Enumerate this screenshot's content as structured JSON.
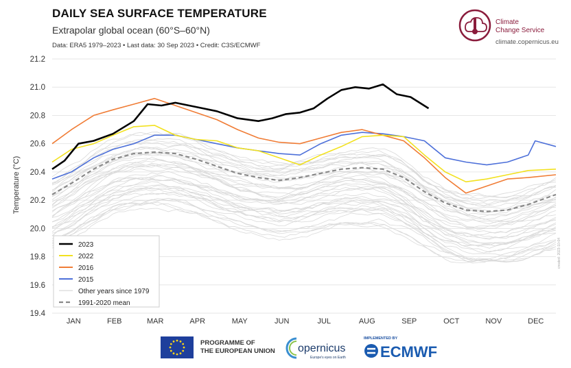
{
  "header": {
    "title": "DAILY SEA SURFACE TEMPERATURE",
    "subtitle": "Extrapolar global ocean (60°S–60°N)",
    "note": "Data: ERA5 1979–2023 • Last data: 30 Sep 2023 • Credit: C3S/ECMWF"
  },
  "branding": {
    "c3s_line1": "Climate",
    "c3s_line2": "Change Service",
    "c3s_url": "climate.copernicus.eu",
    "eu_line1": "PROGRAMME OF",
    "eu_line2": "THE EUROPEAN UNION",
    "copernicus_name": "opernicus",
    "copernicus_tag": "Europe's eyes on Earth",
    "ecmwf_small": "IMPLEMENTED BY",
    "ecmwf_name": "ECMWF",
    "watermark": "created: 2023-10-04"
  },
  "colors": {
    "y2023": "#000000",
    "y2022": "#f2e11f",
    "y2016": "#f07c35",
    "y2015": "#4c6fd9",
    "other": "#d9d9d9",
    "mean": "#888888",
    "brand": "#8a1c3c"
  },
  "chart_data": {
    "type": "line",
    "xlabel": "",
    "ylabel": "Temperature (°C)",
    "ylim": [
      19.4,
      21.2
    ],
    "yticks": [
      "19.4",
      "19.6",
      "19.8",
      "20.0",
      "20.2",
      "20.4",
      "20.6",
      "20.8",
      "21.0",
      "21.2"
    ],
    "months": [
      "JAN",
      "FEB",
      "MAR",
      "APR",
      "MAY",
      "JUN",
      "JUL",
      "AUG",
      "SEP",
      "OCT",
      "NOV",
      "DEC"
    ],
    "grid": true,
    "legend_position": "bottom-left",
    "series": [
      {
        "name": "2023",
        "x": [
          1,
          10,
          20,
          31,
          45,
          60,
          70,
          80,
          90,
          100,
          110,
          120,
          135,
          150,
          160,
          170,
          180,
          190,
          200,
          210,
          220,
          230,
          240,
          250,
          260,
          273
        ],
        "y": [
          20.42,
          20.48,
          20.6,
          20.62,
          20.67,
          20.76,
          20.88,
          20.87,
          20.89,
          20.87,
          20.85,
          20.83,
          20.78,
          20.76,
          20.78,
          20.81,
          20.82,
          20.85,
          20.92,
          20.98,
          21.0,
          20.99,
          21.02,
          20.95,
          20.93,
          20.85
        ]
      },
      {
        "name": "2022",
        "x": [
          1,
          15,
          31,
          45,
          60,
          75,
          90,
          105,
          120,
          135,
          150,
          165,
          180,
          195,
          210,
          225,
          240,
          255,
          270,
          285,
          300,
          315,
          330,
          345,
          365
        ],
        "y": [
          20.47,
          20.56,
          20.6,
          20.66,
          20.72,
          20.73,
          20.66,
          20.63,
          20.62,
          20.57,
          20.55,
          20.5,
          20.45,
          20.52,
          20.58,
          20.65,
          20.66,
          20.65,
          20.52,
          20.4,
          20.33,
          20.35,
          20.38,
          20.41,
          20.42
        ]
      },
      {
        "name": "2016",
        "x": [
          1,
          15,
          31,
          45,
          60,
          75,
          90,
          105,
          120,
          135,
          150,
          165,
          180,
          195,
          210,
          225,
          240,
          255,
          270,
          285,
          300,
          315,
          330,
          345,
          365
        ],
        "y": [
          20.6,
          20.7,
          20.8,
          20.84,
          20.88,
          20.92,
          20.87,
          20.82,
          20.77,
          20.7,
          20.64,
          20.61,
          20.6,
          20.64,
          20.68,
          20.7,
          20.66,
          20.62,
          20.5,
          20.36,
          20.25,
          20.3,
          20.35,
          20.36,
          20.38
        ]
      },
      {
        "name": "2015",
        "x": [
          1,
          15,
          31,
          45,
          60,
          75,
          90,
          105,
          120,
          135,
          150,
          165,
          180,
          195,
          210,
          225,
          240,
          255,
          270,
          285,
          300,
          315,
          330,
          345,
          350,
          365
        ],
        "y": [
          20.35,
          20.4,
          20.5,
          20.56,
          20.6,
          20.66,
          20.66,
          20.63,
          20.6,
          20.57,
          20.55,
          20.53,
          20.52,
          20.6,
          20.66,
          20.68,
          20.67,
          20.65,
          20.62,
          20.5,
          20.47,
          20.45,
          20.47,
          20.52,
          20.62,
          20.58
        ]
      },
      {
        "name": "Other years since 1979",
        "x": [],
        "y": []
      },
      {
        "name": "1991-2020 mean",
        "x": [
          1,
          15,
          31,
          45,
          60,
          75,
          90,
          105,
          120,
          135,
          150,
          165,
          180,
          195,
          210,
          225,
          240,
          255,
          270,
          285,
          300,
          315,
          330,
          345,
          365
        ],
        "y": [
          20.24,
          20.32,
          20.42,
          20.49,
          20.53,
          20.54,
          20.53,
          20.49,
          20.44,
          20.39,
          20.36,
          20.34,
          20.36,
          20.39,
          20.42,
          20.43,
          20.42,
          20.36,
          20.26,
          20.18,
          20.13,
          20.12,
          20.13,
          20.17,
          20.24
        ]
      }
    ]
  }
}
